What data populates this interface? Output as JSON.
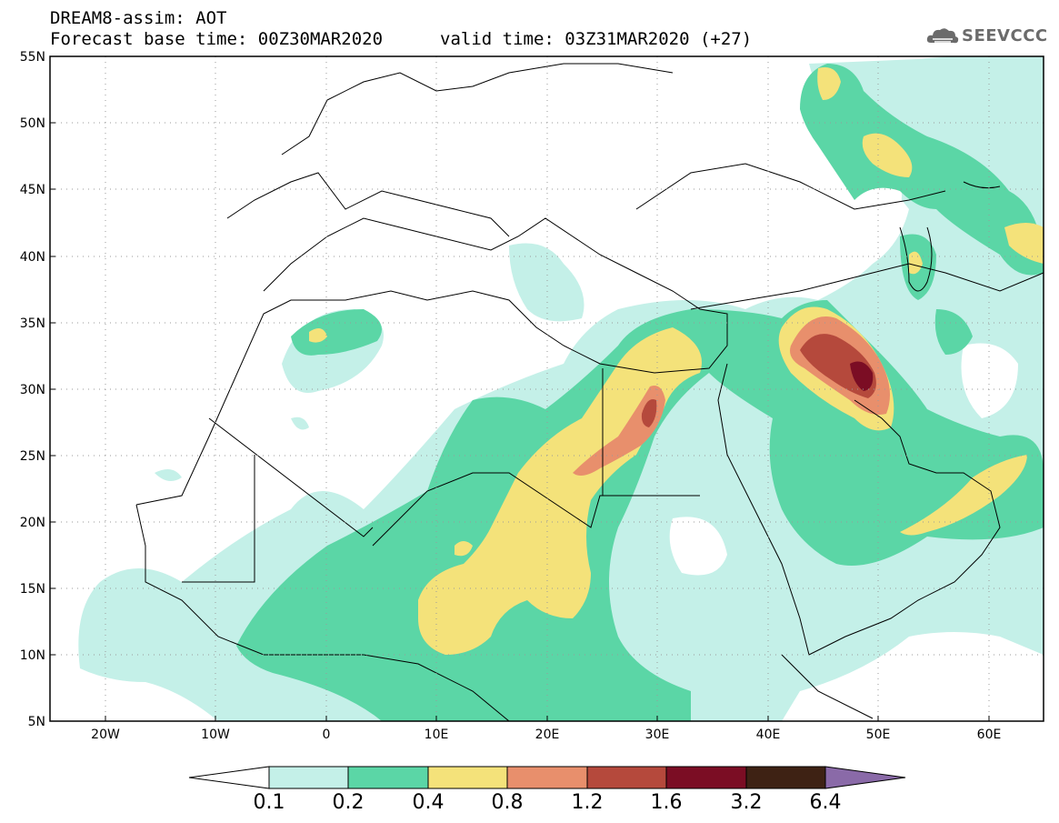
{
  "header": {
    "title_line1": "DREAM8-assim: AOT",
    "title_line2": "Forecast base time: 00Z30MAR2020",
    "valid_time": "valid time: 03Z31MAR2020 (+27)",
    "logo_text": "SEEVCCC",
    "logo_icon": "cloud-logo-icon"
  },
  "map": {
    "lon_range": [
      -25,
      65
    ],
    "lat_range": [
      5,
      55
    ],
    "lat_labels": [
      "55N",
      "50N",
      "45N",
      "40N",
      "35N",
      "30N",
      "25N",
      "20N",
      "15N",
      "10N",
      "5N"
    ],
    "lon_labels": [
      "20W",
      "10W",
      "0",
      "10E",
      "20E",
      "30E",
      "40E",
      "50E",
      "60E"
    ],
    "gridlines": "dotted"
  },
  "colorbar": {
    "labels": [
      "0.1",
      "0.2",
      "0.4",
      "0.8",
      "1.2",
      "1.6",
      "3.2",
      "6.4"
    ],
    "colors": [
      "#ffffff",
      "#c4f0e8",
      "#5bd6a6",
      "#f4e27a",
      "#e88f6c",
      "#b5493c",
      "#7b0d24",
      "#3e2214",
      "#8a6aa8"
    ]
  },
  "colors": {
    "level_0_1": "#c4f0e8",
    "level_0_2": "#5bd6a6",
    "level_0_4": "#f4e27a",
    "level_0_8": "#e88f6c",
    "level_1_2": "#b5493c",
    "level_1_6": "#7b0d24"
  }
}
